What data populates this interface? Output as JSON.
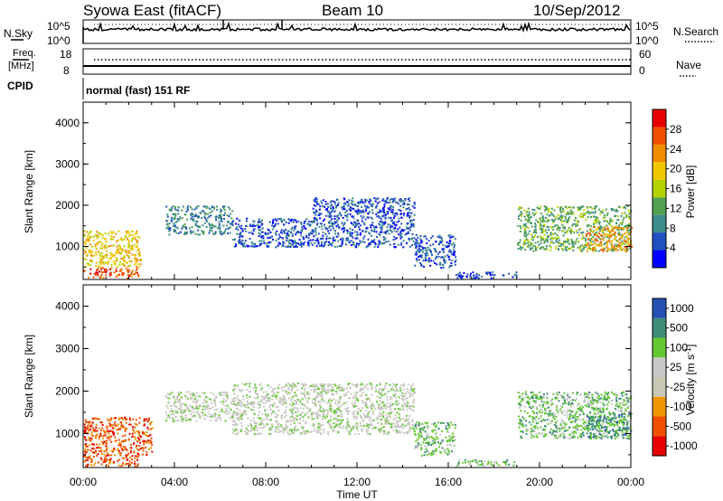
{
  "header": {
    "title": "Syowa East (fitACF)",
    "beam": "Beam 10",
    "date": "10/Sep/2012"
  },
  "nsky_panel": {
    "left_label": "N.Sky",
    "left_ticks": [
      "10^5",
      "10^0"
    ],
    "right_label": "N.Search",
    "right_ticks": [
      "10^5",
      "10^0"
    ]
  },
  "freq_panel": {
    "left_label_1": "Freq.",
    "left_label_2": "[MHz]",
    "left_ticks": [
      "18",
      "8"
    ],
    "right_label": "Nave",
    "right_ticks": [
      "60",
      "0"
    ],
    "cpid_label": "CPID",
    "cpid_text": "normal (fast) 151 RF"
  },
  "colors": {
    "power_scale": [
      "#0000ff",
      "#2050c0",
      "#3c8c8c",
      "#50a050",
      "#b4d200",
      "#f0c800",
      "#f08c00",
      "#f05000",
      "#e60000"
    ],
    "velocity_scale": [
      "#e60000",
      "#f05000",
      "#f09600",
      "#c8c8b4",
      "#c8c8c8",
      "#64c832",
      "#3c8c78",
      "#2850b4"
    ]
  },
  "chart_data": [
    {
      "type": "heatmap",
      "title": "",
      "ylabel": "Slant Range [km]",
      "xlabel": "",
      "ylim": [
        200,
        4500
      ],
      "yticks": [
        "1000",
        "2000",
        "3000",
        "4000"
      ],
      "xlim_hours": [
        0,
        24
      ],
      "colorbar": {
        "label": "Power [dB]",
        "range": [
          0,
          32
        ],
        "ticks": [
          "4",
          "8",
          "12",
          "16",
          "20",
          "24",
          "28"
        ]
      },
      "regions": [
        {
          "t0": 0.0,
          "t1": 2.4,
          "r0": 250,
          "r1": 500,
          "level": 28
        },
        {
          "t0": 0.0,
          "t1": 2.5,
          "r0": 500,
          "r1": 1400,
          "level": 18
        },
        {
          "t0": 3.6,
          "t1": 6.5,
          "r0": 1300,
          "r1": 2000,
          "level": 10
        },
        {
          "t0": 6.5,
          "t1": 10.0,
          "r0": 1000,
          "r1": 1700,
          "level": 6
        },
        {
          "t0": 10.0,
          "t1": 14.5,
          "r0": 1000,
          "r1": 2200,
          "level": 7
        },
        {
          "t0": 14.5,
          "t1": 16.3,
          "r0": 500,
          "r1": 1300,
          "level": 5
        },
        {
          "t0": 16.3,
          "t1": 19.0,
          "r0": 250,
          "r1": 400,
          "level": 4
        },
        {
          "t0": 19.0,
          "t1": 24.0,
          "r0": 900,
          "r1": 2000,
          "level": 12
        },
        {
          "t0": 22.0,
          "t1": 24.0,
          "r0": 900,
          "r1": 1500,
          "level": 22
        }
      ]
    },
    {
      "type": "heatmap",
      "title": "",
      "ylabel": "Slant Range [km]",
      "xlabel": "Time UT",
      "ylim": [
        200,
        4500
      ],
      "yticks": [
        "1000",
        "2000",
        "3000",
        "4000"
      ],
      "xlim_hours": [
        0,
        24
      ],
      "xticks": [
        "00:00",
        "04:00",
        "08:00",
        "12:00",
        "16:00",
        "20:00",
        "00:00"
      ],
      "colorbar": {
        "label": "Velocity [m s^-1]",
        "ticks": [
          "-1000",
          "-500",
          "-100",
          "-25",
          "25",
          "100",
          "500",
          "1000"
        ]
      },
      "regions": [
        {
          "t0": 0.0,
          "t1": 2.4,
          "r0": 250,
          "r1": 500,
          "level": -300
        },
        {
          "t0": 0.0,
          "t1": 3.0,
          "r0": 500,
          "r1": 1400,
          "level": -150
        },
        {
          "t0": 3.6,
          "t1": 6.5,
          "r0": 1300,
          "r1": 2000,
          "level": 0
        },
        {
          "t0": 6.5,
          "t1": 14.5,
          "r0": 1000,
          "r1": 2200,
          "level": 0
        },
        {
          "t0": 14.5,
          "t1": 16.3,
          "r0": 500,
          "r1": 1300,
          "level": 80
        },
        {
          "t0": 16.3,
          "t1": 19.0,
          "r0": 250,
          "r1": 400,
          "level": 60
        },
        {
          "t0": 19.0,
          "t1": 24.0,
          "r0": 900,
          "r1": 2000,
          "level": 40
        },
        {
          "t0": 22.0,
          "t1": 24.0,
          "r0": 900,
          "r1": 1500,
          "level": 300
        }
      ]
    }
  ]
}
